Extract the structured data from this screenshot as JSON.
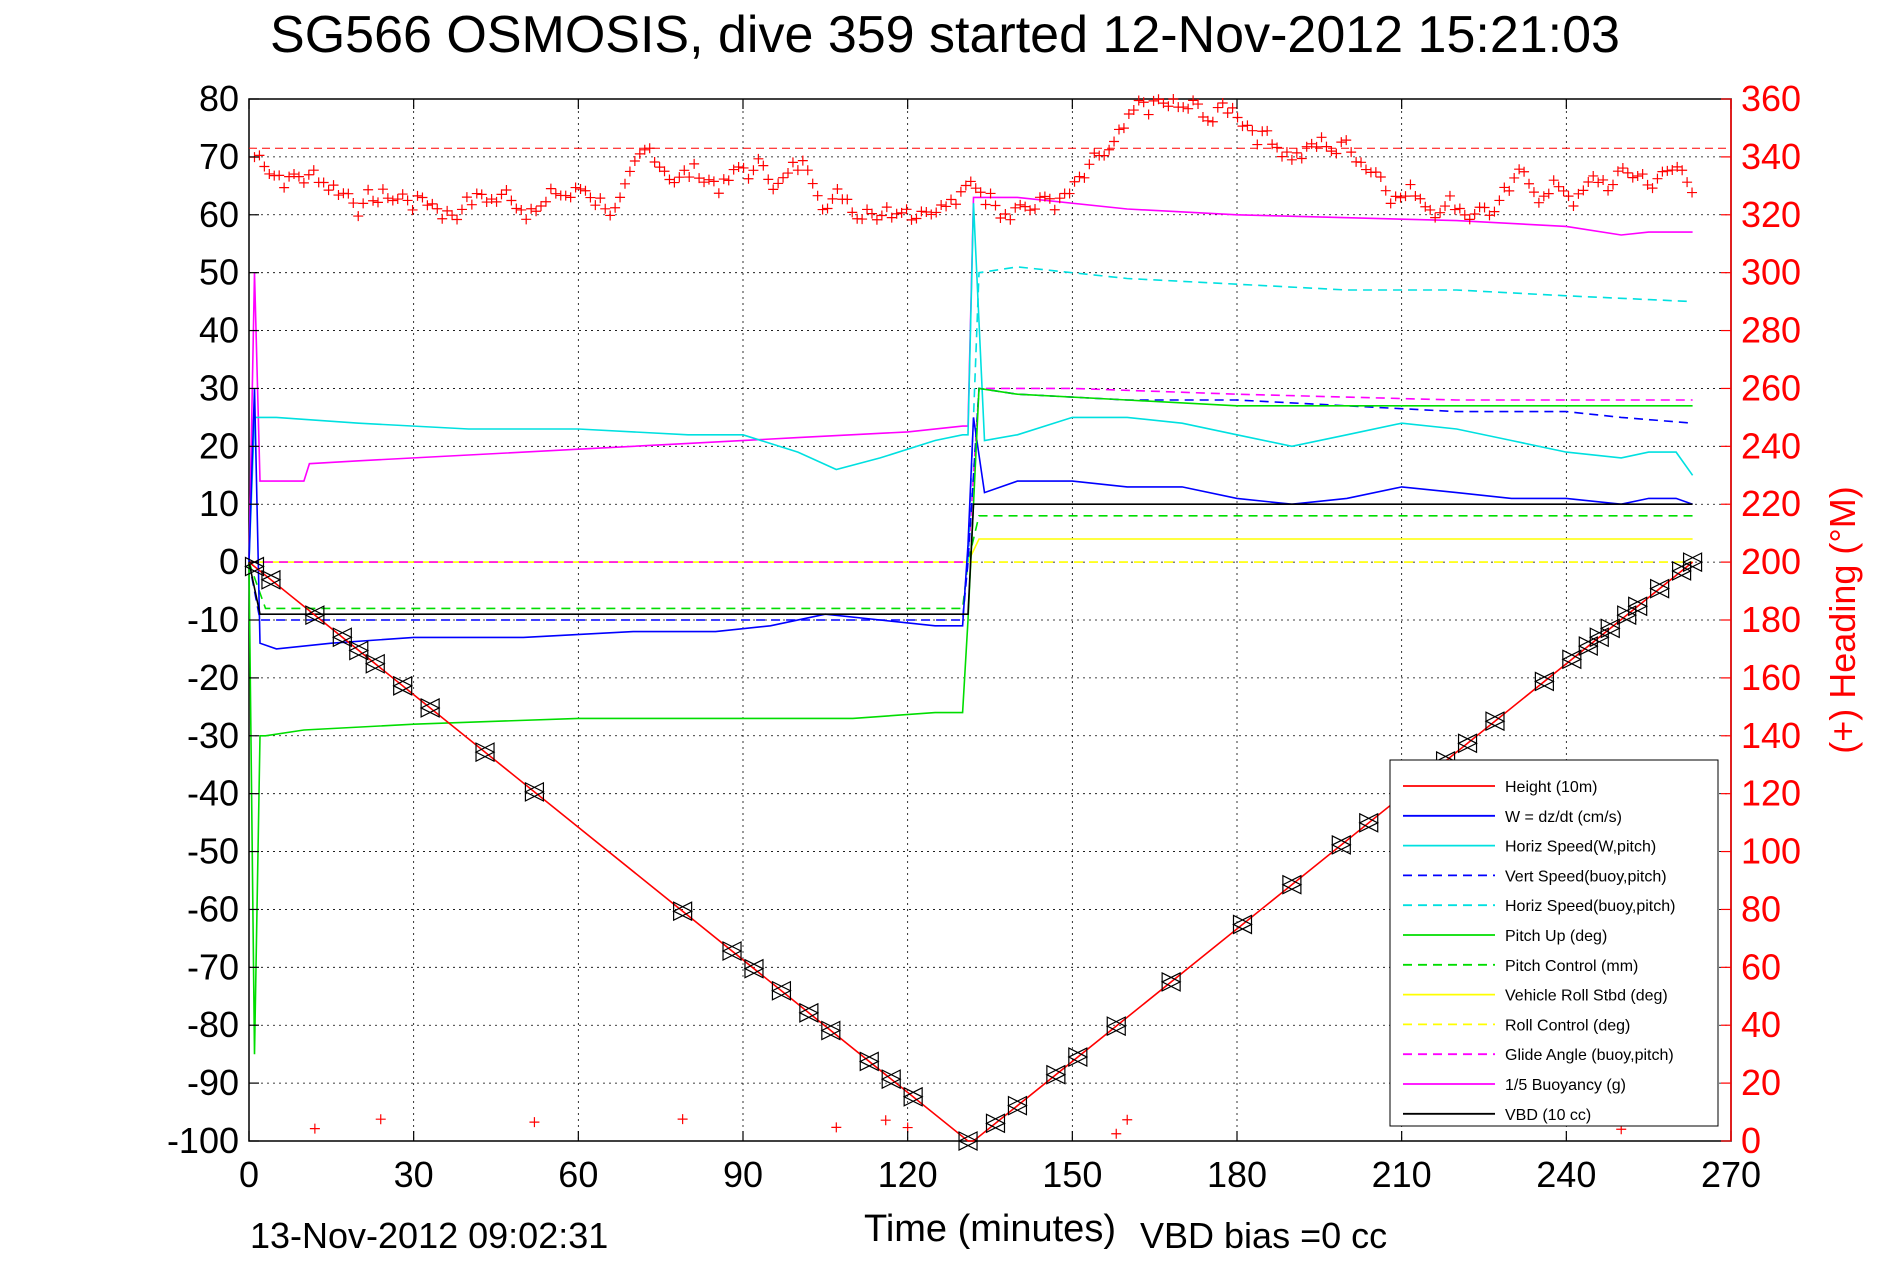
{
  "figure": {
    "title": "SG566 OSMOSIS, dive 359 started 12-Nov-2012 15:21:03",
    "footer_left": "13-Nov-2012 09:02:31",
    "footer_right": "VBD bias =0 cc"
  },
  "chart_data": {
    "type": "line",
    "title": "SG566 OSMOSIS, dive 359 started 12-Nov-2012 15:21:03",
    "xlabel": "Time (minutes)",
    "ylabel": "",
    "y2label": "(+) Heading (°M)",
    "xlim": [
      0,
      270
    ],
    "ylim": [
      -100,
      80
    ],
    "y2lim": [
      0,
      360
    ],
    "x_ticks": [
      0,
      30,
      60,
      90,
      120,
      150,
      180,
      210,
      240,
      270
    ],
    "y_ticks": [
      -100,
      -90,
      -80,
      -70,
      -60,
      -50,
      -40,
      -30,
      -20,
      -10,
      0,
      10,
      20,
      30,
      40,
      50,
      60,
      70,
      80
    ],
    "y2_ticks": [
      0,
      20,
      40,
      60,
      80,
      100,
      120,
      140,
      160,
      180,
      200,
      220,
      240,
      260,
      280,
      300,
      320,
      340,
      360
    ],
    "grid": true,
    "legend_position": "bottom-right",
    "heading_target": 343,
    "series": [
      {
        "name": "Height (10m)",
        "color": "#ff0000",
        "style": "solid",
        "x": [
          0,
          131,
          132,
          263
        ],
        "y": [
          0,
          -100,
          -100,
          0
        ]
      },
      {
        "name": "W = dz/dt (cm/s)",
        "color": "#0000ff",
        "style": "solid",
        "x": [
          0,
          1,
          2,
          5,
          15,
          30,
          50,
          70,
          85,
          95,
          105,
          115,
          125,
          130,
          131,
          132,
          134,
          140,
          150,
          160,
          170,
          180,
          190,
          200,
          210,
          220,
          230,
          240,
          250,
          255,
          260,
          263
        ],
        "y": [
          0,
          30,
          -14,
          -15,
          -14,
          -13,
          -13,
          -12,
          -12,
          -11,
          -9,
          -10,
          -11,
          -11,
          3,
          25,
          12,
          14,
          14,
          13,
          13,
          11,
          10,
          11,
          13,
          12,
          11,
          11,
          10,
          11,
          11,
          10
        ]
      },
      {
        "name": "Horiz Speed(W,pitch)",
        "color": "#00e0e0",
        "style": "solid",
        "x": [
          0,
          1,
          2,
          5,
          20,
          40,
          60,
          80,
          90,
          100,
          107,
          115,
          125,
          130,
          131,
          132,
          134,
          140,
          150,
          160,
          170,
          180,
          190,
          200,
          210,
          220,
          230,
          240,
          250,
          255,
          260,
          263
        ],
        "y": [
          0,
          25,
          25,
          25,
          24,
          23,
          23,
          22,
          22,
          19,
          16,
          18,
          21,
          22,
          22,
          62,
          21,
          22,
          25,
          25,
          24,
          22,
          20,
          22,
          24,
          23,
          21,
          19,
          18,
          19,
          19,
          15
        ]
      },
      {
        "name": "Vert Speed(buoy,pitch)",
        "color": "#0000ff",
        "style": "dashed",
        "x": [
          0,
          2,
          130,
          131,
          133,
          140,
          160,
          180,
          200,
          220,
          240,
          250,
          263
        ],
        "y": [
          0,
          -10,
          -10,
          0,
          30,
          29,
          28,
          28,
          27,
          26,
          26,
          25,
          24
        ]
      },
      {
        "name": "Horiz Speed(buoy,pitch)",
        "color": "#00e0e0",
        "style": "dashed",
        "x": [
          131,
          133,
          140,
          160,
          180,
          200,
          220,
          240,
          263
        ],
        "y": [
          0,
          50,
          51,
          49,
          48,
          47,
          47,
          46,
          45
        ]
      },
      {
        "name": "Pitch Up (deg)",
        "color": "#00dd00",
        "style": "solid",
        "x": [
          0,
          1,
          2,
          3,
          10,
          30,
          60,
          90,
          110,
          125,
          130,
          131,
          133,
          140,
          160,
          180,
          200,
          220,
          240,
          255,
          263
        ],
        "y": [
          0,
          -85,
          -30,
          -30,
          -29,
          -28,
          -27,
          -27,
          -27,
          -26,
          -26,
          -10,
          30,
          29,
          28,
          27,
          27,
          27,
          27,
          27,
          27
        ]
      },
      {
        "name": "Pitch Control (mm)",
        "color": "#00dd00",
        "style": "dashed",
        "x": [
          0,
          3,
          130,
          131,
          133,
          263
        ],
        "y": [
          0,
          -8,
          -8,
          0,
          8,
          8
        ]
      },
      {
        "name": "Vehicle Roll Stbd (deg)",
        "color": "#ffff00",
        "style": "solid",
        "x": [
          0,
          3,
          130,
          131,
          133,
          263
        ],
        "y": [
          0,
          0,
          0,
          0,
          4,
          4
        ]
      },
      {
        "name": "Roll Control (deg)",
        "color": "#ffff00",
        "style": "dashed",
        "x": [
          0,
          130,
          131,
          263
        ],
        "y": [
          0,
          0,
          0,
          0
        ]
      },
      {
        "name": "Glide Angle (buoy,pitch)",
        "color": "#ff00ff",
        "style": "dashed",
        "x": [
          0,
          130,
          131,
          133,
          150,
          180,
          220,
          263
        ],
        "y": [
          0,
          0,
          0,
          30,
          30,
          29,
          28,
          28
        ]
      },
      {
        "name": "1/5 Buoyancy (g)",
        "color": "#ff00ff",
        "style": "solid",
        "x": [
          0,
          1,
          2,
          10,
          11,
          20,
          40,
          60,
          80,
          100,
          120,
          130,
          131,
          132,
          140,
          160,
          180,
          200,
          220,
          240,
          250,
          255,
          263
        ],
        "y": [
          0,
          50,
          14,
          14,
          17,
          17.5,
          18.5,
          19.5,
          20.5,
          21.5,
          22.5,
          23.5,
          23.5,
          63,
          63,
          61,
          60,
          59.5,
          59,
          58,
          56.5,
          57,
          57
        ]
      },
      {
        "name": "VBD (10 cc)",
        "color": "#000000",
        "style": "solid",
        "x": [
          0,
          2,
          130,
          131,
          132,
          263
        ],
        "y": [
          0,
          -9,
          -9,
          -9,
          10,
          10
        ]
      }
    ]
  }
}
